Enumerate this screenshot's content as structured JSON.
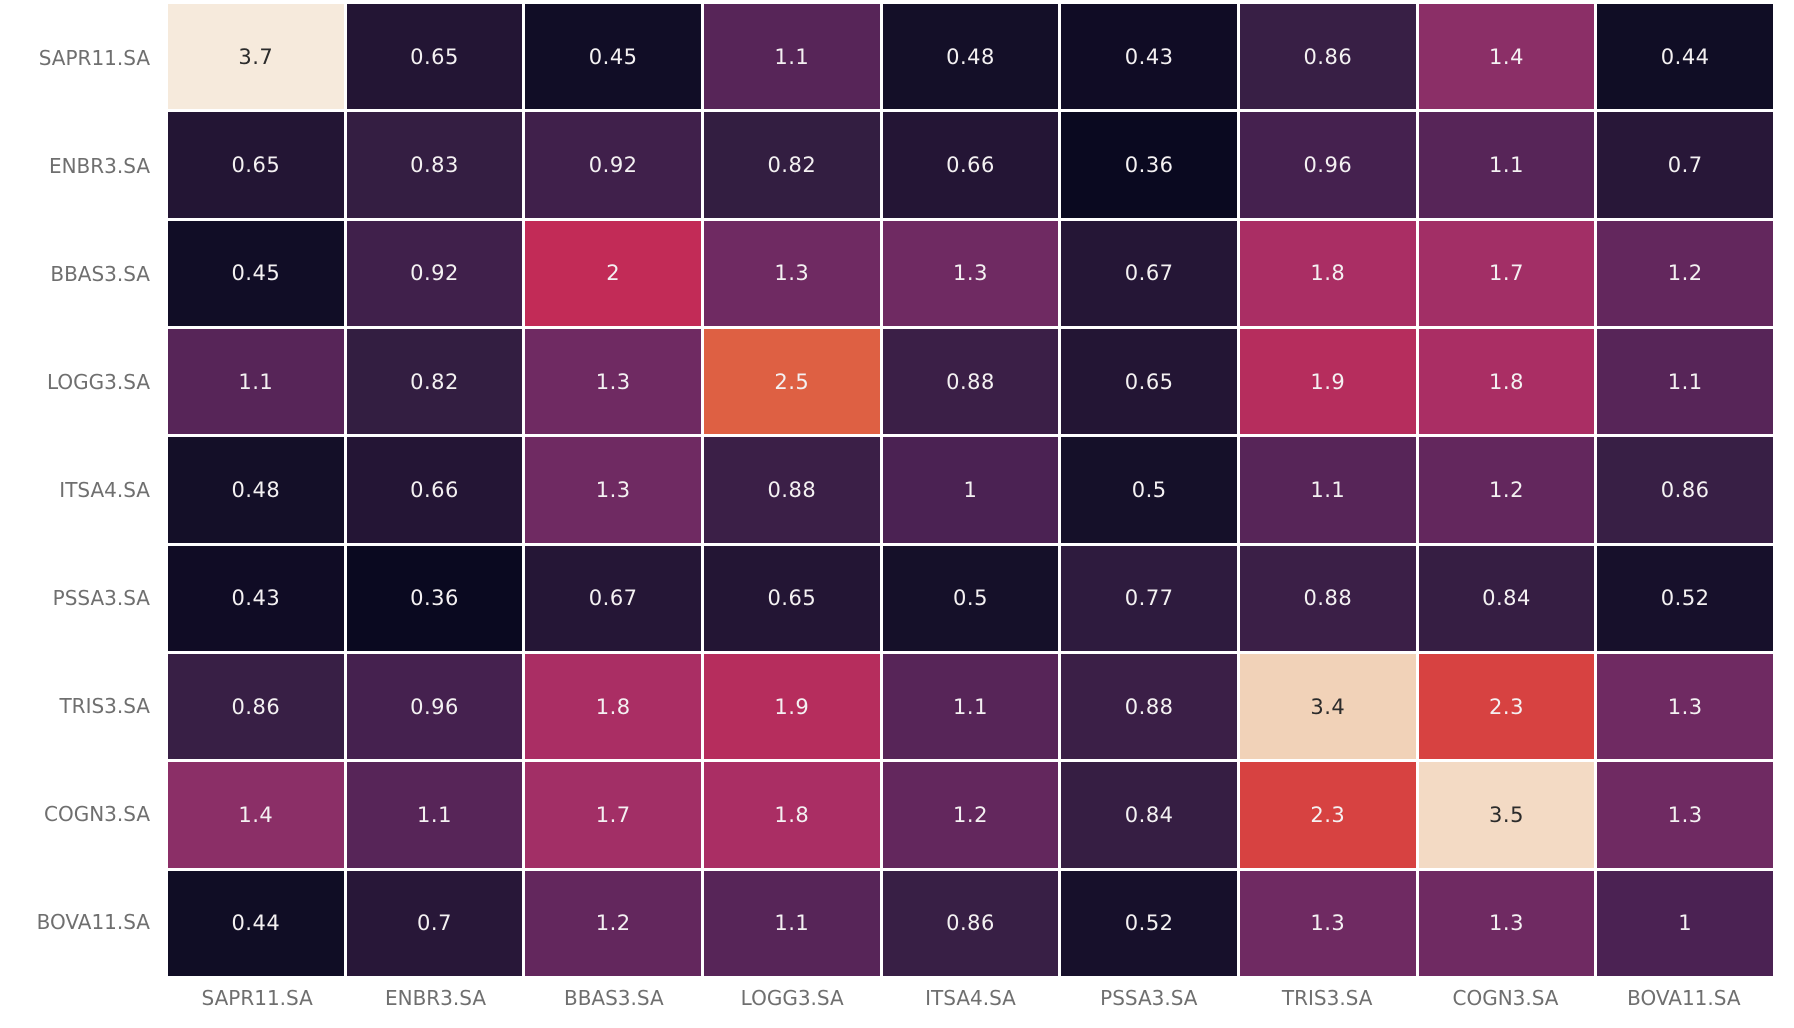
{
  "figure": {
    "background_color": "#ffffff",
    "title": ""
  },
  "chart_data": {
    "type": "heatmap",
    "title": "",
    "xlabel": "",
    "ylabel": "",
    "legend": "none",
    "colorbar": "none",
    "x_tick_labels": [
      "SAPR11.SA",
      "ENBR3.SA",
      "BBAS3.SA",
      "LOGG3.SA",
      "ITSA4.SA",
      "PSSA3.SA",
      "TRIS3.SA",
      "COGN3.SA",
      "BOVA11.SA"
    ],
    "y_tick_labels": [
      "SAPR11.SA",
      "ENBR3.SA",
      "BBAS3.SA",
      "LOGG3.SA",
      "ITSA4.SA",
      "PSSA3.SA",
      "TRIS3.SA",
      "COGN3.SA",
      "BOVA11.SA"
    ],
    "values": [
      [
        3.7,
        0.65,
        0.45,
        1.1,
        0.48,
        0.43,
        0.86,
        1.4,
        0.44
      ],
      [
        0.65,
        0.83,
        0.92,
        0.82,
        0.66,
        0.36,
        0.96,
        1.1,
        0.7
      ],
      [
        0.45,
        0.92,
        2,
        1.3,
        1.3,
        0.67,
        1.8,
        1.7,
        1.2
      ],
      [
        1.1,
        0.82,
        1.3,
        2.5,
        0.88,
        0.65,
        1.9,
        1.8,
        1.1
      ],
      [
        0.48,
        0.66,
        1.3,
        0.88,
        1,
        0.5,
        1.1,
        1.2,
        0.86
      ],
      [
        0.43,
        0.36,
        0.67,
        0.65,
        0.5,
        0.77,
        0.88,
        0.84,
        0.52
      ],
      [
        0.86,
        0.96,
        1.8,
        1.9,
        1.1,
        0.88,
        3.4,
        2.3,
        1.3
      ],
      [
        1.4,
        1.1,
        1.7,
        1.8,
        1.2,
        0.84,
        2.3,
        3.5,
        1.3
      ],
      [
        0.44,
        0.7,
        1.2,
        1.1,
        0.86,
        0.52,
        1.3,
        1.3,
        1
      ]
    ],
    "vmin": 0.36,
    "vmax": 3.7,
    "grid_line_color": "#ffffff",
    "tick_label_color": "#6f6f6f",
    "annotation_color_on_dark": "#f4f1f2",
    "annotation_color_on_light": "#2b2b2b",
    "colormap": {
      "name": "rocket",
      "stops": [
        [
          0.0,
          "#0a0920"
        ],
        [
          0.045,
          "#16102a"
        ],
        [
          0.09,
          "#241535"
        ],
        [
          0.14,
          "#341e42"
        ],
        [
          0.19,
          "#4a2253"
        ],
        [
          0.28,
          "#6e2a62"
        ],
        [
          0.315,
          "#8e3068"
        ],
        [
          0.42,
          "#a62f66"
        ],
        [
          0.5,
          "#c52b55"
        ],
        [
          0.59,
          "#d9453f"
        ],
        [
          0.66,
          "#e06a45"
        ],
        [
          0.8,
          "#f0a981"
        ],
        [
          0.91,
          "#f1d2b8"
        ],
        [
          1.0,
          "#f6eadc"
        ]
      ]
    }
  }
}
